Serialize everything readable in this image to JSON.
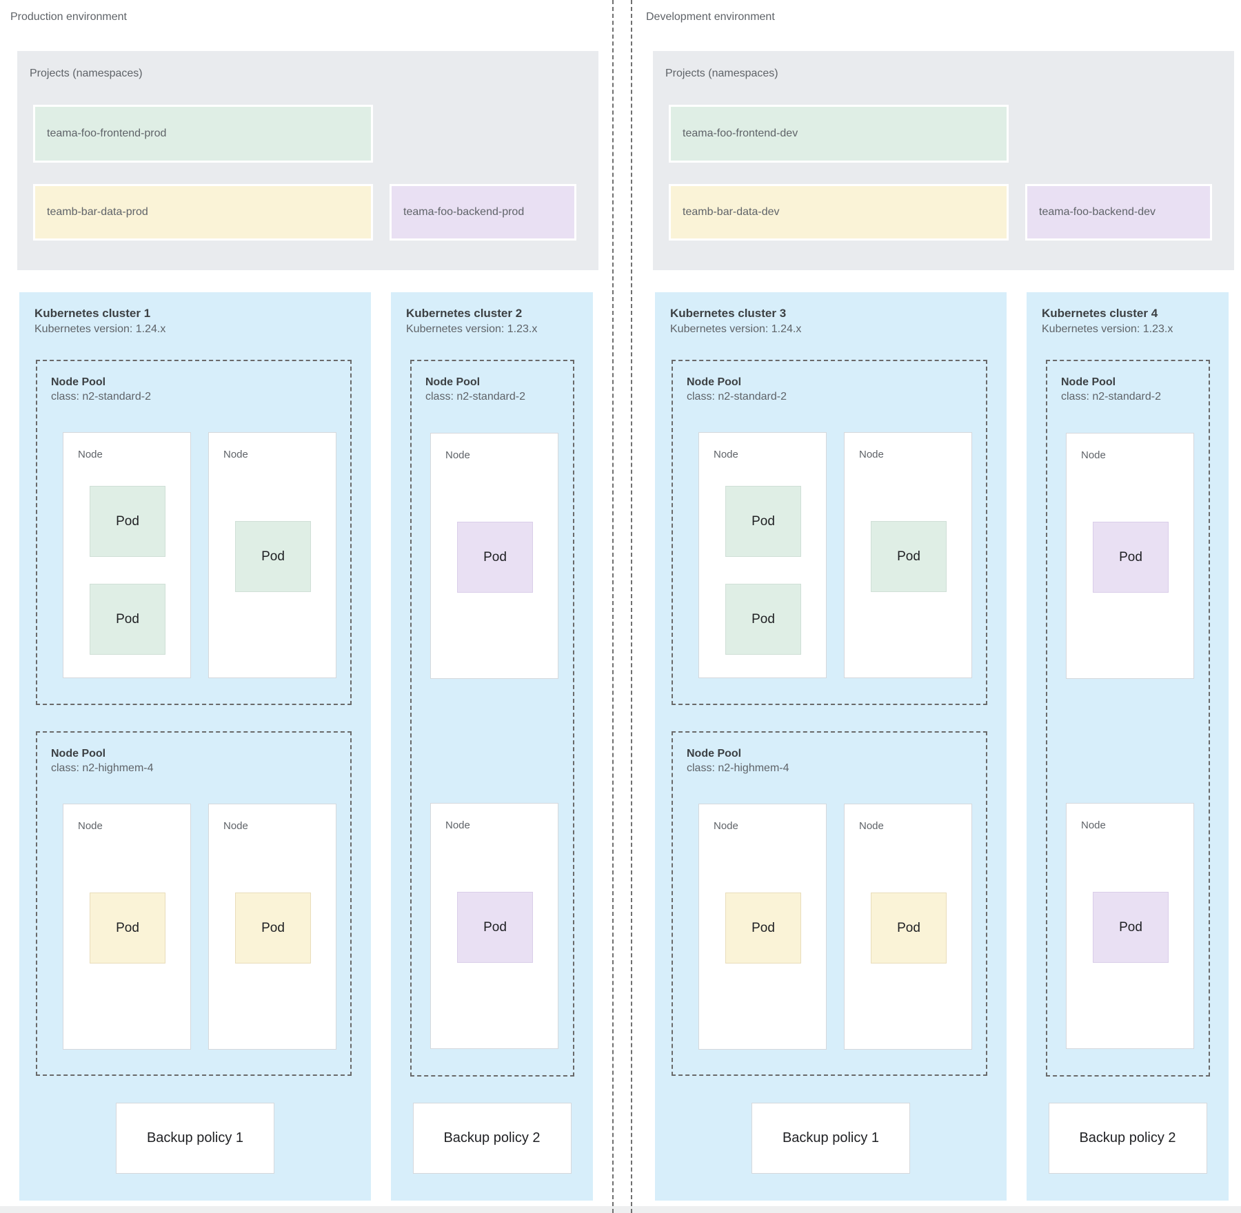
{
  "colors": {
    "green": "#dfeee5",
    "yellow": "#faf3d7",
    "purple": "#e9e0f3",
    "cluster_blue": "#d7eefa",
    "projects_gray": "#e9ebee"
  },
  "environments": [
    {
      "id": "production",
      "label": "Production environment",
      "projects": {
        "title": "Projects (namespaces)",
        "items": [
          {
            "label": "teama-foo-frontend-prod",
            "color": "green"
          },
          {
            "label": "teamb-bar-data-prod",
            "color": "yellow"
          },
          {
            "label": "teama-foo-backend-prod",
            "color": "purple"
          }
        ]
      },
      "clusters": [
        {
          "title": "Kubernetes cluster 1",
          "version": "Kubernetes version: 1.24.x",
          "node_pools": [
            {
              "title": "Node Pool",
              "node_class": "class: n2-standard-2",
              "nodes": [
                {
                  "label": "Node",
                  "pods": [
                    {
                      "label": "Pod",
                      "color": "green"
                    },
                    {
                      "label": "Pod",
                      "color": "green"
                    }
                  ]
                },
                {
                  "label": "Node",
                  "pods": [
                    {
                      "label": "Pod",
                      "color": "green"
                    }
                  ]
                }
              ]
            },
            {
              "title": "Node Pool",
              "node_class": "class: n2-highmem-4",
              "nodes": [
                {
                  "label": "Node",
                  "pods": [
                    {
                      "label": "Pod",
                      "color": "yellow"
                    }
                  ]
                },
                {
                  "label": "Node",
                  "pods": [
                    {
                      "label": "Pod",
                      "color": "yellow"
                    }
                  ]
                }
              ]
            }
          ],
          "backup_policy": "Backup policy 1"
        },
        {
          "title": "Kubernetes cluster 2",
          "version": "Kubernetes version: 1.23.x",
          "node_pools": [
            {
              "title": "Node Pool",
              "node_class": "class: n2-standard-2",
              "nodes": [
                {
                  "label": "Node",
                  "pods": [
                    {
                      "label": "Pod",
                      "color": "purple"
                    }
                  ]
                },
                {
                  "label": "Node",
                  "pods": [
                    {
                      "label": "Pod",
                      "color": "purple"
                    }
                  ]
                }
              ]
            }
          ],
          "backup_policy": "Backup policy 2"
        }
      ]
    },
    {
      "id": "development",
      "label": "Development environment",
      "projects": {
        "title": "Projects (namespaces)",
        "items": [
          {
            "label": "teama-foo-frontend-dev",
            "color": "green"
          },
          {
            "label": "teamb-bar-data-dev",
            "color": "yellow"
          },
          {
            "label": "teama-foo-backend-dev",
            "color": "purple"
          }
        ]
      },
      "clusters": [
        {
          "title": "Kubernetes cluster 3",
          "version": "Kubernetes version: 1.24.x",
          "node_pools": [
            {
              "title": "Node Pool",
              "node_class": "class: n2-standard-2",
              "nodes": [
                {
                  "label": "Node",
                  "pods": [
                    {
                      "label": "Pod",
                      "color": "green"
                    },
                    {
                      "label": "Pod",
                      "color": "green"
                    }
                  ]
                },
                {
                  "label": "Node",
                  "pods": [
                    {
                      "label": "Pod",
                      "color": "green"
                    }
                  ]
                }
              ]
            },
            {
              "title": "Node Pool",
              "node_class": "class: n2-highmem-4",
              "nodes": [
                {
                  "label": "Node",
                  "pods": [
                    {
                      "label": "Pod",
                      "color": "yellow"
                    }
                  ]
                },
                {
                  "label": "Node",
                  "pods": [
                    {
                      "label": "Pod",
                      "color": "yellow"
                    }
                  ]
                }
              ]
            }
          ],
          "backup_policy": "Backup policy 1"
        },
        {
          "title": "Kubernetes cluster 4",
          "version": "Kubernetes version: 1.23.x",
          "node_pools": [
            {
              "title": "Node Pool",
              "node_class": "class: n2-standard-2",
              "nodes": [
                {
                  "label": "Node",
                  "pods": [
                    {
                      "label": "Pod",
                      "color": "purple"
                    }
                  ]
                },
                {
                  "label": "Node",
                  "pods": [
                    {
                      "label": "Pod",
                      "color": "purple"
                    }
                  ]
                }
              ]
            }
          ],
          "backup_policy": "Backup policy 2"
        }
      ]
    }
  ]
}
